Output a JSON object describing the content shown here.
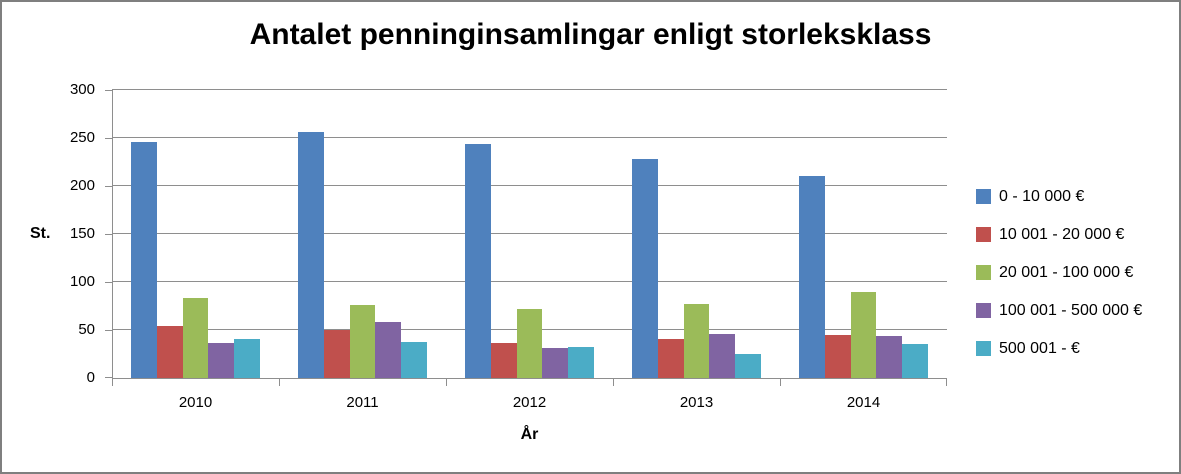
{
  "chart_data": {
    "type": "bar",
    "title": "Antalet penninginsamlingar enligt storleksklass",
    "xlabel": "År",
    "ylabel": "St.",
    "categories": [
      "2010",
      "2011",
      "2012",
      "2013",
      "2014"
    ],
    "series": [
      {
        "name": "0 - 10 000 €",
        "color": "#4F81BD",
        "values": [
          246,
          256,
          244,
          228,
          210
        ]
      },
      {
        "name": "10 001 - 20 000 €",
        "color": "#C0504D",
        "values": [
          54,
          50,
          36,
          41,
          45
        ]
      },
      {
        "name": "20 001 - 100 000 €",
        "color": "#9BBB59",
        "values": [
          83,
          76,
          72,
          77,
          90
        ]
      },
      {
        "name": "100 001 - 500 000 €",
        "color": "#8064A2",
        "values": [
          36,
          58,
          31,
          46,
          44
        ]
      },
      {
        "name": "500 001 - €",
        "color": "#4BACC6",
        "values": [
          41,
          37,
          32,
          25,
          35
        ]
      }
    ],
    "ylim": [
      0,
      300
    ],
    "ytick_step": 50,
    "grid": true,
    "legend_position": "right",
    "colors": {
      "axis": "#8E8E8E",
      "gridline": "#8E8E8E",
      "chart_border": "#7F7F7F",
      "background": "#FFFFFF",
      "text": "#000000"
    }
  }
}
